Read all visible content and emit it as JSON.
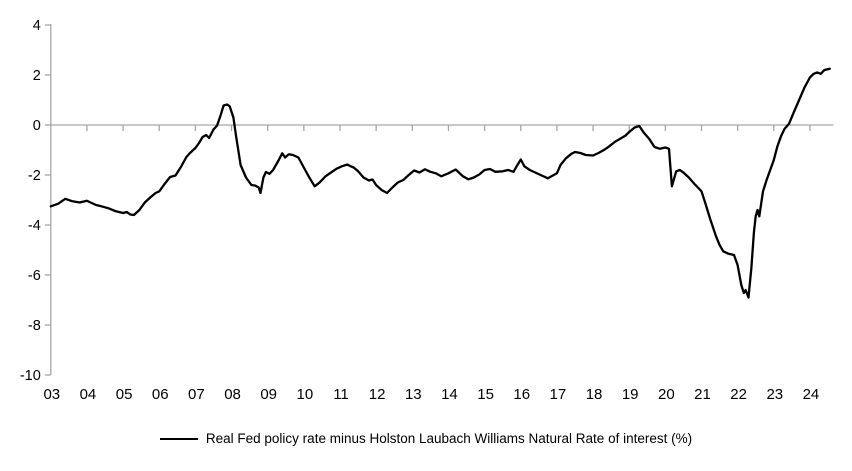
{
  "chart_data": {
    "type": "line",
    "title": "",
    "xlabel": "",
    "ylabel": "",
    "grid": false,
    "zero_line": true,
    "legend_position": "bottom-center",
    "xlim": [
      2003,
      2024.65
    ],
    "ylim": [
      -10,
      4
    ],
    "y_ticks": [
      4,
      2,
      0,
      -2,
      -4,
      -6,
      -8,
      -10
    ],
    "x_ticks": {
      "labels": [
        "03",
        "04",
        "05",
        "06",
        "07",
        "08",
        "09",
        "10",
        "11",
        "12",
        "13",
        "14",
        "15",
        "16",
        "17",
        "18",
        "19",
        "20",
        "21",
        "22",
        "23",
        "24"
      ],
      "years": [
        2003,
        2004,
        2005,
        2006,
        2007,
        2008,
        2009,
        2010,
        2011,
        2012,
        2013,
        2014,
        2015,
        2016,
        2017,
        2018,
        2019,
        2020,
        2021,
        2022,
        2023,
        2024
      ]
    },
    "series": [
      {
        "name": "Real Fed policy rate minus Holston Laubach Williams Natural Rate of interest (%)",
        "color": "#000000",
        "points": [
          [
            2003.0,
            -3.25
          ],
          [
            2003.2,
            -3.15
          ],
          [
            2003.4,
            -2.95
          ],
          [
            2003.6,
            -3.05
          ],
          [
            2003.8,
            -3.1
          ],
          [
            2004.0,
            -3.03
          ],
          [
            2004.1,
            -3.1
          ],
          [
            2004.25,
            -3.2
          ],
          [
            2004.4,
            -3.25
          ],
          [
            2004.6,
            -3.33
          ],
          [
            2004.8,
            -3.45
          ],
          [
            2005.0,
            -3.52
          ],
          [
            2005.1,
            -3.48
          ],
          [
            2005.2,
            -3.58
          ],
          [
            2005.3,
            -3.6
          ],
          [
            2005.45,
            -3.4
          ],
          [
            2005.6,
            -3.1
          ],
          [
            2005.75,
            -2.9
          ],
          [
            2005.9,
            -2.72
          ],
          [
            2006.0,
            -2.65
          ],
          [
            2006.15,
            -2.35
          ],
          [
            2006.3,
            -2.08
          ],
          [
            2006.45,
            -2.02
          ],
          [
            2006.6,
            -1.68
          ],
          [
            2006.75,
            -1.28
          ],
          [
            2006.85,
            -1.12
          ],
          [
            2007.0,
            -0.92
          ],
          [
            2007.1,
            -0.72
          ],
          [
            2007.2,
            -0.48
          ],
          [
            2007.3,
            -0.4
          ],
          [
            2007.38,
            -0.52
          ],
          [
            2007.5,
            -0.18
          ],
          [
            2007.6,
            -0.02
          ],
          [
            2007.7,
            0.4
          ],
          [
            2007.78,
            0.78
          ],
          [
            2007.88,
            0.82
          ],
          [
            2007.95,
            0.75
          ],
          [
            2008.05,
            0.3
          ],
          [
            2008.12,
            -0.4
          ],
          [
            2008.25,
            -1.6
          ],
          [
            2008.4,
            -2.1
          ],
          [
            2008.55,
            -2.4
          ],
          [
            2008.65,
            -2.42
          ],
          [
            2008.75,
            -2.5
          ],
          [
            2008.8,
            -2.72
          ],
          [
            2008.88,
            -2.1
          ],
          [
            2008.95,
            -1.88
          ],
          [
            2009.05,
            -1.95
          ],
          [
            2009.15,
            -1.8
          ],
          [
            2009.3,
            -1.42
          ],
          [
            2009.4,
            -1.13
          ],
          [
            2009.48,
            -1.3
          ],
          [
            2009.58,
            -1.17
          ],
          [
            2009.7,
            -1.2
          ],
          [
            2009.85,
            -1.3
          ],
          [
            2010.0,
            -1.7
          ],
          [
            2010.15,
            -2.1
          ],
          [
            2010.3,
            -2.45
          ],
          [
            2010.45,
            -2.28
          ],
          [
            2010.6,
            -2.05
          ],
          [
            2010.75,
            -1.9
          ],
          [
            2010.9,
            -1.75
          ],
          [
            2011.05,
            -1.65
          ],
          [
            2011.2,
            -1.58
          ],
          [
            2011.3,
            -1.65
          ],
          [
            2011.38,
            -1.7
          ],
          [
            2011.5,
            -1.85
          ],
          [
            2011.65,
            -2.1
          ],
          [
            2011.8,
            -2.22
          ],
          [
            2011.9,
            -2.18
          ],
          [
            2012.0,
            -2.4
          ],
          [
            2012.15,
            -2.6
          ],
          [
            2012.3,
            -2.72
          ],
          [
            2012.45,
            -2.5
          ],
          [
            2012.6,
            -2.3
          ],
          [
            2012.75,
            -2.2
          ],
          [
            2012.9,
            -2.0
          ],
          [
            2013.05,
            -1.82
          ],
          [
            2013.2,
            -1.9
          ],
          [
            2013.35,
            -1.77
          ],
          [
            2013.5,
            -1.87
          ],
          [
            2013.65,
            -1.93
          ],
          [
            2013.8,
            -2.05
          ],
          [
            2014.0,
            -1.93
          ],
          [
            2014.2,
            -1.78
          ],
          [
            2014.4,
            -2.05
          ],
          [
            2014.55,
            -2.17
          ],
          [
            2014.7,
            -2.1
          ],
          [
            2014.85,
            -1.98
          ],
          [
            2015.0,
            -1.8
          ],
          [
            2015.15,
            -1.76
          ],
          [
            2015.3,
            -1.87
          ],
          [
            2015.5,
            -1.85
          ],
          [
            2015.65,
            -1.8
          ],
          [
            2015.8,
            -1.87
          ],
          [
            2015.9,
            -1.62
          ],
          [
            2016.0,
            -1.38
          ],
          [
            2016.1,
            -1.65
          ],
          [
            2016.25,
            -1.8
          ],
          [
            2016.4,
            -1.9
          ],
          [
            2016.55,
            -2.0
          ],
          [
            2016.75,
            -2.13
          ],
          [
            2017.0,
            -1.93
          ],
          [
            2017.1,
            -1.6
          ],
          [
            2017.25,
            -1.33
          ],
          [
            2017.4,
            -1.15
          ],
          [
            2017.5,
            -1.08
          ],
          [
            2017.65,
            -1.12
          ],
          [
            2017.8,
            -1.2
          ],
          [
            2018.0,
            -1.22
          ],
          [
            2018.15,
            -1.12
          ],
          [
            2018.3,
            -1.0
          ],
          [
            2018.45,
            -0.85
          ],
          [
            2018.6,
            -0.68
          ],
          [
            2018.75,
            -0.55
          ],
          [
            2018.9,
            -0.42
          ],
          [
            2019.0,
            -0.28
          ],
          [
            2019.15,
            -0.1
          ],
          [
            2019.28,
            -0.04
          ],
          [
            2019.4,
            -0.3
          ],
          [
            2019.55,
            -0.55
          ],
          [
            2019.7,
            -0.88
          ],
          [
            2019.85,
            -0.95
          ],
          [
            2020.0,
            -0.9
          ],
          [
            2020.1,
            -0.95
          ],
          [
            2020.18,
            -2.45
          ],
          [
            2020.3,
            -1.85
          ],
          [
            2020.4,
            -1.8
          ],
          [
            2020.5,
            -1.9
          ],
          [
            2020.65,
            -2.1
          ],
          [
            2020.8,
            -2.35
          ],
          [
            2020.9,
            -2.5
          ],
          [
            2021.0,
            -2.65
          ],
          [
            2021.1,
            -3.1
          ],
          [
            2021.25,
            -3.8
          ],
          [
            2021.4,
            -4.45
          ],
          [
            2021.5,
            -4.8
          ],
          [
            2021.6,
            -5.05
          ],
          [
            2021.75,
            -5.15
          ],
          [
            2021.9,
            -5.2
          ],
          [
            2022.0,
            -5.6
          ],
          [
            2022.1,
            -6.4
          ],
          [
            2022.17,
            -6.72
          ],
          [
            2022.22,
            -6.6
          ],
          [
            2022.3,
            -6.9
          ],
          [
            2022.38,
            -5.7
          ],
          [
            2022.45,
            -4.3
          ],
          [
            2022.5,
            -3.65
          ],
          [
            2022.55,
            -3.4
          ],
          [
            2022.6,
            -3.65
          ],
          [
            2022.7,
            -2.65
          ],
          [
            2022.8,
            -2.2
          ],
          [
            2022.9,
            -1.8
          ],
          [
            2023.0,
            -1.4
          ],
          [
            2023.1,
            -0.85
          ],
          [
            2023.2,
            -0.45
          ],
          [
            2023.3,
            -0.15
          ],
          [
            2023.42,
            0.05
          ],
          [
            2023.55,
            0.5
          ],
          [
            2023.7,
            1.0
          ],
          [
            2023.85,
            1.5
          ],
          [
            2024.0,
            1.9
          ],
          [
            2024.1,
            2.05
          ],
          [
            2024.2,
            2.1
          ],
          [
            2024.3,
            2.05
          ],
          [
            2024.4,
            2.2
          ],
          [
            2024.55,
            2.25
          ]
        ]
      }
    ]
  },
  "legend": {
    "label": "Real Fed policy rate minus Holston Laubach Williams Natural Rate of interest (%)"
  },
  "style": {
    "axis_color": "#a6a6a6",
    "line_color": "#000000",
    "text_color": "#000000"
  }
}
